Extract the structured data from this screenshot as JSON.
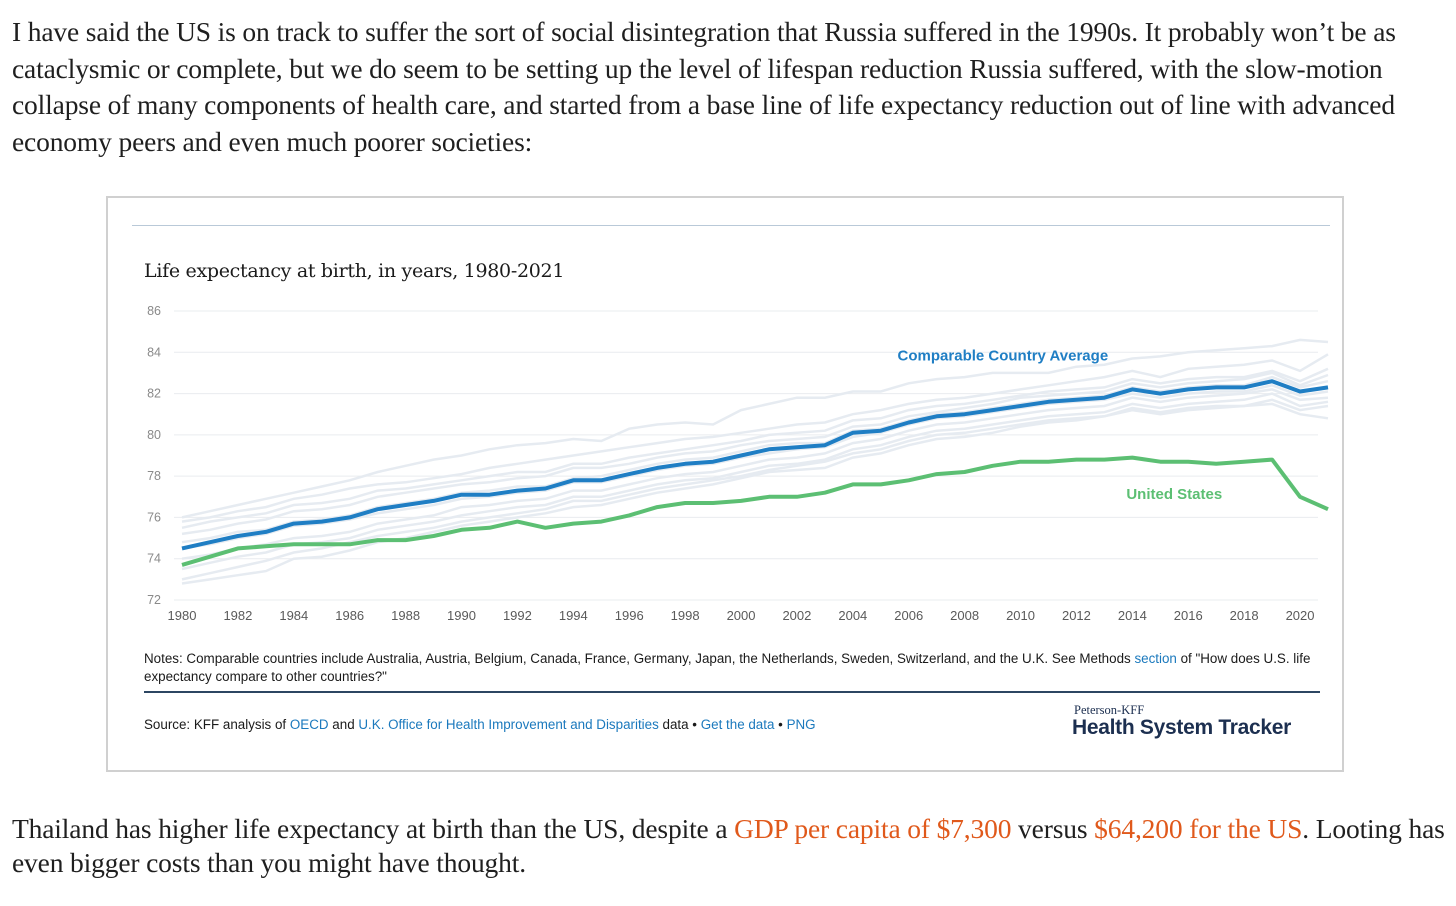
{
  "article": {
    "intro": "I have said the US is on track to suffer the sort of social disintegration that Russia suffered in the 1990s. It probably won’t be as cataclysmic or complete, but we do seem to be setting up the level of lifespan reduction Russia suffered, with the slow-motion collapse of many components of health care, and started from a base line of life expectancy reduction out of line with advanced economy peers and even much poorer societies:",
    "outro_1": "Thailand has higher life expectancy at birth than the US, despite a ",
    "outro_link1": "GDP per capita of $7,300",
    "outro_2": " versus ",
    "outro_link2": "$64,200 for the US",
    "outro_3": ". Looting has even bigger costs than you might have thought."
  },
  "figure": {
    "notes_1": "Notes: Comparable countries include Australia, Austria, Belgium, Canada, France, Germany, Japan, the Netherlands, Sweden, Switzerland, and the U.K. See Methods ",
    "notes_link": "section",
    "notes_2": " of \"How does U.S. life expectancy compare to other countries?\"",
    "source_prefix": "Source: KFF analysis of ",
    "source_link1": "OECD",
    "source_and": " and ",
    "source_link2": "U.K. Office for Health Improvement and Disparities",
    "source_data": " data • ",
    "source_link3": "Get the data",
    "source_bullet": " • ",
    "source_link4": "PNG",
    "brand_small": "Peterson-KFF",
    "brand_big": "Health System Tracker"
  },
  "colors": {
    "comparable": "#1f7ec4",
    "us": "#5cbf73",
    "background_lines": "#e6ebf1",
    "link": "#1b79bd",
    "highlight": "#e0591b"
  },
  "chart_data": {
    "type": "line",
    "title": "Life expectancy at birth, in years, 1980-2021",
    "xlabel": "",
    "ylabel": "",
    "xlim": [
      1980,
      2021
    ],
    "ylim": [
      72,
      86
    ],
    "x_ticks": [
      "1980",
      "1982",
      "1984",
      "1986",
      "1988",
      "1990",
      "1992",
      "1994",
      "1996",
      "1998",
      "2000",
      "2002",
      "2004",
      "2006",
      "2008",
      "2010",
      "2012",
      "2014",
      "2016",
      "2018",
      "2020"
    ],
    "y_ticks": [
      "72",
      "74",
      "76",
      "78",
      "80",
      "82",
      "84",
      "86"
    ],
    "grid": true,
    "x": [
      1980,
      1981,
      1982,
      1983,
      1984,
      1985,
      1986,
      1987,
      1988,
      1989,
      1990,
      1991,
      1992,
      1993,
      1994,
      1995,
      1996,
      1997,
      1998,
      1999,
      2000,
      2001,
      2002,
      2003,
      2004,
      2005,
      2006,
      2007,
      2008,
      2009,
      2010,
      2011,
      2012,
      2013,
      2014,
      2015,
      2016,
      2017,
      2018,
      2019,
      2020,
      2021
    ],
    "series": [
      {
        "name": "Comparable Country Average",
        "values": [
          74.5,
          74.8,
          75.1,
          75.3,
          75.7,
          75.8,
          76.0,
          76.4,
          76.6,
          76.8,
          77.1,
          77.1,
          77.3,
          77.4,
          77.8,
          77.8,
          78.1,
          78.4,
          78.6,
          78.7,
          79.0,
          79.3,
          79.4,
          79.5,
          80.1,
          80.2,
          80.6,
          80.9,
          81.0,
          81.2,
          81.4,
          81.6,
          81.7,
          81.8,
          82.2,
          82.0,
          82.2,
          82.3,
          82.3,
          82.6,
          82.1,
          82.3
        ]
      },
      {
        "name": "United States",
        "values": [
          73.7,
          74.1,
          74.5,
          74.6,
          74.7,
          74.7,
          74.7,
          74.9,
          74.9,
          75.1,
          75.4,
          75.5,
          75.8,
          75.5,
          75.7,
          75.8,
          76.1,
          76.5,
          76.7,
          76.7,
          76.8,
          77.0,
          77.0,
          77.2,
          77.6,
          77.6,
          77.8,
          78.1,
          78.2,
          78.5,
          78.7,
          78.7,
          78.8,
          78.8,
          78.9,
          78.7,
          78.7,
          78.6,
          78.7,
          78.8,
          77.0,
          76.4
        ]
      }
    ],
    "background_series": [
      [
        76.0,
        76.3,
        76.6,
        76.9,
        77.2,
        77.5,
        77.8,
        78.2,
        78.5,
        78.8,
        79.0,
        79.3,
        79.5,
        79.6,
        79.8,
        79.7,
        80.3,
        80.5,
        80.6,
        80.5,
        81.2,
        81.5,
        81.8,
        81.8,
        82.1,
        82.1,
        82.5,
        82.7,
        82.8,
        83.0,
        83.0,
        83.0,
        83.3,
        83.4,
        83.7,
        83.8,
        84.0,
        84.1,
        84.2,
        84.3,
        84.6,
        84.5
      ],
      [
        75.8,
        76.0,
        76.3,
        76.5,
        76.9,
        77.1,
        77.4,
        77.6,
        77.7,
        77.9,
        78.1,
        78.4,
        78.6,
        78.8,
        79.0,
        79.2,
        79.4,
        79.6,
        79.8,
        79.9,
        80.1,
        80.3,
        80.5,
        80.6,
        81.0,
        81.2,
        81.5,
        81.7,
        81.8,
        82.0,
        82.2,
        82.4,
        82.6,
        82.8,
        83.1,
        82.8,
        83.2,
        83.3,
        83.4,
        83.6,
        83.1,
        83.9
      ],
      [
        75.2,
        75.4,
        75.7,
        75.9,
        76.3,
        76.4,
        76.6,
        77.0,
        77.2,
        77.4,
        77.6,
        77.7,
        77.9,
        78.0,
        78.4,
        78.4,
        78.6,
        78.9,
        79.1,
        79.2,
        79.5,
        79.7,
        79.8,
        79.9,
        80.4,
        80.5,
        80.9,
        81.1,
        81.3,
        81.5,
        81.8,
        81.9,
        82.0,
        82.1,
        82.5,
        82.3,
        82.5,
        82.6,
        82.7,
        83.0,
        82.4,
        82.9
      ],
      [
        74.5,
        74.7,
        75.0,
        75.2,
        75.6,
        75.7,
        75.9,
        76.2,
        76.4,
        76.6,
        76.9,
        77.0,
        77.2,
        77.3,
        77.7,
        77.7,
        78.0,
        78.3,
        78.5,
        78.6,
        78.9,
        79.1,
        79.3,
        79.4,
        79.9,
        80.1,
        80.5,
        80.8,
        80.9,
        81.1,
        81.3,
        81.5,
        81.6,
        81.7,
        82.0,
        81.8,
        82.0,
        82.1,
        82.1,
        82.4,
        81.9,
        82.1
      ],
      [
        74.0,
        74.2,
        74.5,
        74.7,
        75.0,
        75.1,
        75.3,
        75.7,
        75.9,
        76.1,
        76.5,
        76.6,
        76.8,
        76.9,
        77.3,
        77.3,
        77.6,
        77.9,
        78.1,
        78.2,
        78.5,
        78.8,
        78.9,
        79.1,
        79.6,
        79.8,
        80.2,
        80.5,
        80.6,
        80.8,
        81.0,
        81.2,
        81.3,
        81.4,
        81.8,
        81.6,
        81.8,
        81.9,
        82.0,
        82.2,
        81.7,
        81.8
      ],
      [
        73.5,
        73.8,
        74.1,
        74.3,
        74.7,
        74.8,
        75.0,
        75.4,
        75.6,
        75.8,
        76.1,
        76.3,
        76.5,
        76.6,
        77.0,
        77.0,
        77.3,
        77.6,
        77.8,
        77.9,
        78.2,
        78.5,
        78.6,
        78.8,
        79.3,
        79.5,
        79.9,
        80.2,
        80.3,
        80.5,
        80.7,
        80.9,
        81.0,
        81.1,
        81.5,
        81.3,
        81.5,
        81.6,
        81.7,
        82.0,
        81.4,
        81.6
      ],
      [
        73.0,
        73.3,
        73.6,
        73.9,
        74.3,
        74.5,
        74.8,
        75.1,
        75.3,
        75.5,
        75.8,
        76.0,
        76.2,
        76.4,
        76.8,
        76.8,
        77.1,
        77.4,
        77.6,
        77.8,
        78.0,
        78.3,
        78.5,
        78.7,
        79.1,
        79.3,
        79.7,
        80.0,
        80.1,
        80.3,
        80.5,
        80.7,
        80.8,
        80.9,
        81.3,
        81.1,
        81.3,
        81.4,
        81.4,
        81.7,
        81.2,
        81.4
      ],
      [
        72.8,
        73.0,
        73.2,
        73.4,
        74.0,
        74.1,
        74.4,
        74.8,
        75.0,
        75.3,
        75.6,
        75.8,
        76.0,
        76.2,
        76.5,
        76.6,
        76.9,
        77.2,
        77.4,
        77.6,
        77.9,
        78.2,
        78.3,
        78.4,
        78.9,
        79.1,
        79.5,
        79.8,
        79.9,
        80.1,
        80.4,
        80.6,
        80.7,
        80.9,
        81.2,
        81.0,
        81.2,
        81.3,
        81.4,
        81.5,
        81.0,
        80.8
      ],
      [
        74.8,
        75.0,
        75.3,
        75.4,
        75.8,
        75.9,
        76.1,
        76.5,
        76.7,
        76.9,
        77.2,
        77.3,
        77.5,
        77.5,
        77.9,
        78.0,
        78.3,
        78.6,
        78.8,
        78.9,
        79.2,
        79.5,
        79.6,
        79.6,
        80.2,
        80.3,
        80.7,
        81.0,
        81.1,
        81.3,
        81.5,
        81.7,
        81.8,
        81.9,
        82.3,
        82.1,
        82.3,
        82.4,
        82.4,
        82.8,
        82.3,
        82.6
      ],
      [
        75.5,
        75.8,
        76.0,
        76.2,
        76.6,
        76.7,
        76.9,
        77.3,
        77.4,
        77.6,
        77.8,
        78.0,
        78.2,
        78.2,
        78.6,
        78.6,
        78.9,
        79.1,
        79.3,
        79.5,
        79.7,
        80.0,
        80.1,
        80.2,
        80.7,
        80.8,
        81.2,
        81.4,
        81.5,
        81.7,
        81.9,
        82.1,
        82.2,
        82.3,
        82.7,
        82.5,
        82.7,
        82.8,
        82.8,
        83.1,
        82.6,
        83.2
      ]
    ],
    "annotations": [
      {
        "text": "Comparable Country Average",
        "series": "Comparable Country Average"
      },
      {
        "text": "United States",
        "series": "United States"
      }
    ]
  }
}
